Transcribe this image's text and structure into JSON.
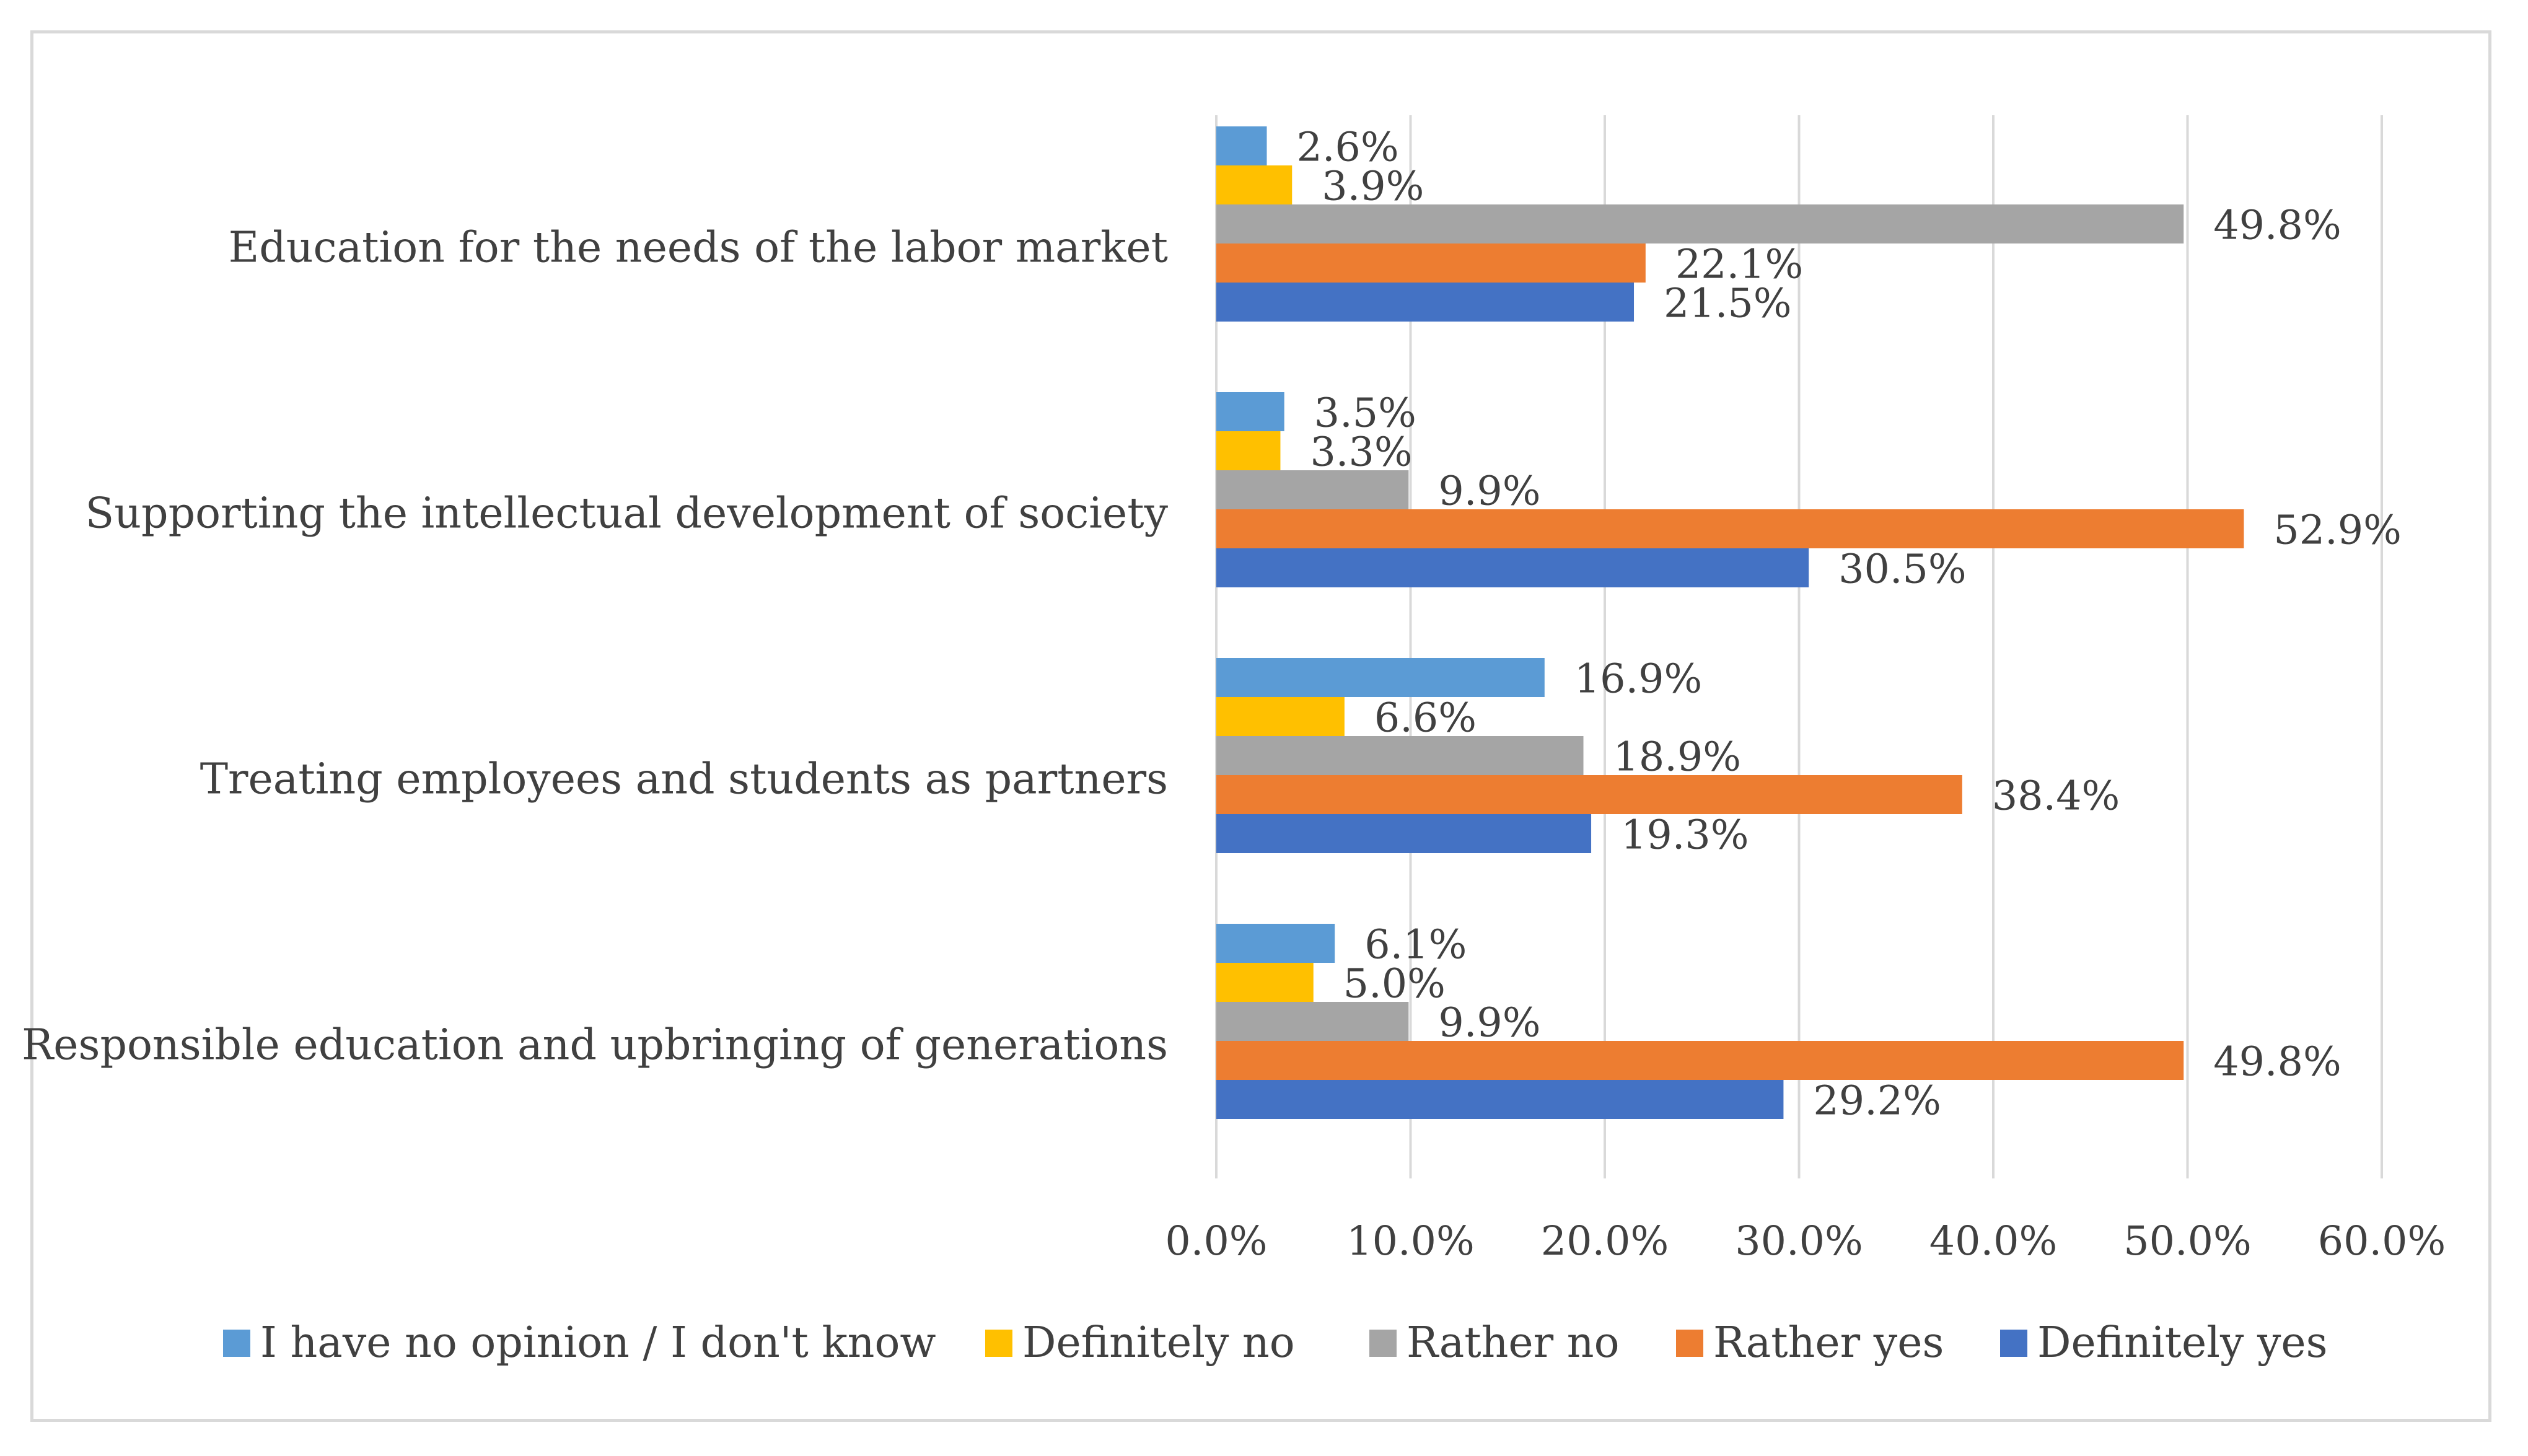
{
  "chart_data": {
    "type": "bar",
    "orientation": "horizontal",
    "title": "",
    "xlabel": "",
    "ylabel": "",
    "xlim": [
      0,
      60
    ],
    "grid": true,
    "legend_position": "bottom",
    "categories": [
      "Education for the needs of the labor market",
      "Supporting the intellectual development of society",
      "Treating employees and students as partners",
      "Responsible education and upbringing of generations"
    ],
    "x_ticks": [
      "0.0%",
      "10.0%",
      "20.0%",
      "30.0%",
      "40.0%",
      "50.0%",
      "60.0%"
    ],
    "series": [
      {
        "name": "I have no opinion / I don't know",
        "color": "#5b9bd5",
        "values": [
          2.6,
          3.5,
          16.9,
          6.1
        ],
        "labels": [
          "2.6%",
          "3.5%",
          "16.9%",
          "6.1%"
        ]
      },
      {
        "name": "Definitely no",
        "color": "#ffc000",
        "values": [
          3.9,
          3.3,
          6.6,
          5.0
        ],
        "labels": [
          "3.9%",
          "3.3%",
          "6.6%",
          "5.0%"
        ]
      },
      {
        "name": "Rather no",
        "color": "#a5a5a5",
        "values": [
          49.8,
          9.9,
          18.9,
          9.9
        ],
        "labels": [
          "49.8%",
          "9.9%",
          "18.9%",
          "9.9%"
        ]
      },
      {
        "name": "Rather yes",
        "color": "#ed7d31",
        "values": [
          22.1,
          52.9,
          38.4,
          49.8
        ],
        "labels": [
          "22.1%",
          "52.9%",
          "38.4%",
          "49.8%"
        ]
      },
      {
        "name": "Definitely yes",
        "color": "#4472c4",
        "values": [
          21.5,
          30.5,
          19.3,
          29.2
        ],
        "labels": [
          "21.5%",
          "30.5%",
          "19.3%",
          "29.2%"
        ]
      }
    ]
  }
}
